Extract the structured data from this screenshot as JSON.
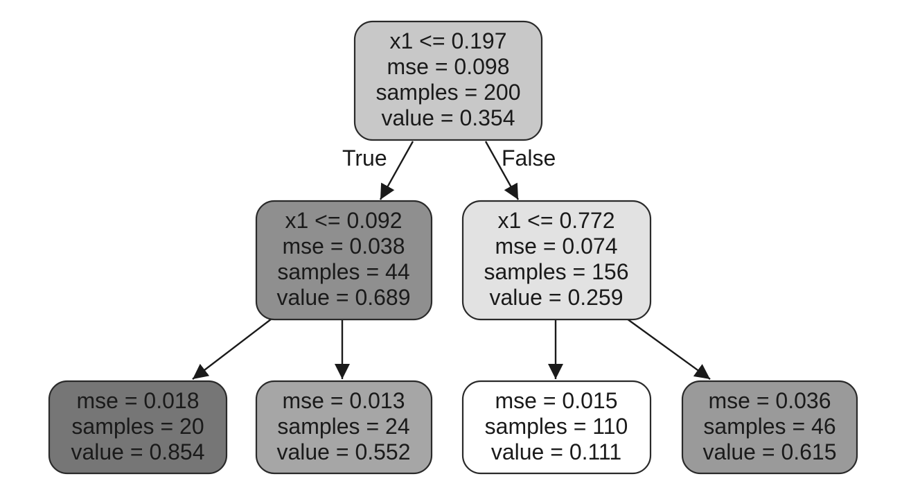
{
  "tree": {
    "root": {
      "condition": "x1 <= 0.197",
      "mse": "mse = 0.098",
      "samples": "samples = 200",
      "value": "value = 0.354",
      "fill": "#c8c8c8"
    },
    "left": {
      "condition": "x1 <= 0.092",
      "mse": "mse = 0.038",
      "samples": "samples = 44",
      "value": "value = 0.689",
      "fill": "#8f8f8f"
    },
    "right": {
      "condition": "x1 <= 0.772",
      "mse": "mse = 0.074",
      "samples": "samples = 156",
      "value": "value = 0.259",
      "fill": "#e2e2e2"
    },
    "left_left": {
      "mse": "mse = 0.018",
      "samples": "samples = 20",
      "value": "value = 0.854",
      "fill": "#767676"
    },
    "left_right": {
      "mse": "mse = 0.013",
      "samples": "samples = 24",
      "value": "value = 0.552",
      "fill": "#a6a6a6"
    },
    "right_left": {
      "mse": "mse = 0.015",
      "samples": "samples = 110",
      "value": "value = 0.111",
      "fill": "#ffffff"
    },
    "right_right": {
      "mse": "mse = 0.036",
      "samples": "samples = 46",
      "value": "value = 0.615",
      "fill": "#9a9a9a"
    }
  },
  "edges": {
    "true_label": "True",
    "false_label": "False"
  }
}
